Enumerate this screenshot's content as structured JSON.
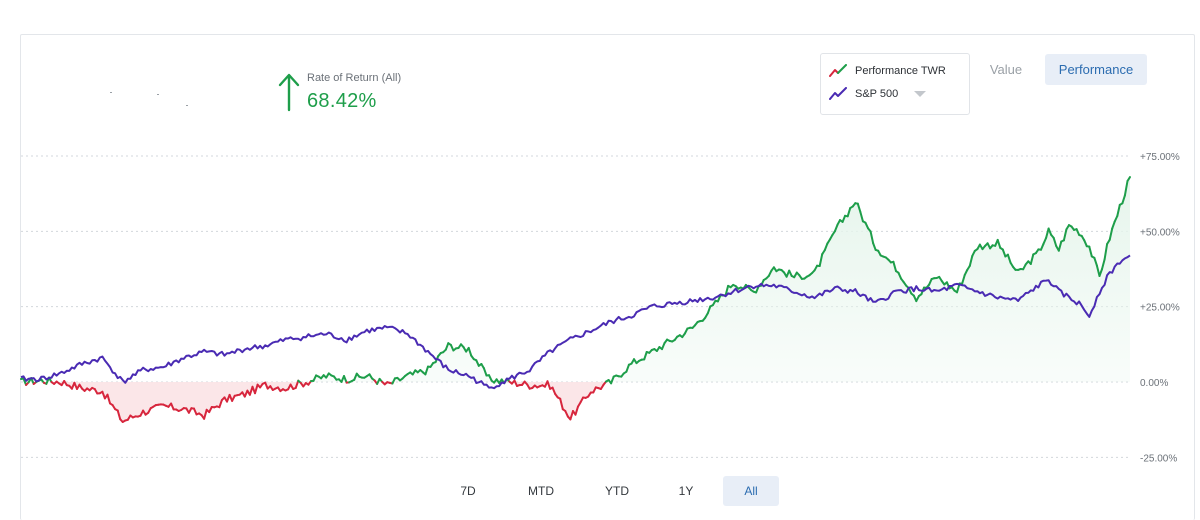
{
  "summary": {
    "label": "Rate of Return (All)",
    "value": "68.42%",
    "arrow_icon": "arrow-up-icon",
    "color": "#1e9e4a"
  },
  "legend": {
    "items": [
      {
        "label": "Performance TWR",
        "icon": "trend-line-icon",
        "colors": [
          "#d7263d",
          "#1e9e4a"
        ]
      },
      {
        "label": "S&P 500",
        "icon": "trend-line-icon",
        "colors": [
          "#4a2bb3"
        ],
        "has_dropdown": true
      }
    ]
  },
  "view_toggle": {
    "value_label": "Value",
    "performance_label": "Performance",
    "active": "Performance"
  },
  "ranges": {
    "items": [
      "7D",
      "MTD",
      "YTD",
      "1Y",
      "All"
    ],
    "active": "All"
  },
  "chart_data": {
    "type": "line",
    "ylim": [
      -25,
      75
    ],
    "y_ticks": [
      75,
      50,
      25,
      0,
      -25
    ],
    "y_tick_labels": [
      "+75.00%",
      "+50.00%",
      "+25.00%",
      "0.00%",
      "-25.00%"
    ],
    "grid": true,
    "area_fill_under_performance": true,
    "colors": {
      "performance_positive": "#1e9e4a",
      "performance_negative": "#d7263d",
      "benchmark": "#4a2bb3",
      "fill_positive": "#e6f5ec",
      "fill_negative": "#fbe3e6"
    },
    "x": [
      0,
      2,
      4,
      6,
      8,
      10,
      12,
      14,
      16,
      18,
      20,
      22,
      24,
      26,
      28,
      30,
      32,
      34,
      36,
      38,
      40,
      42,
      44,
      46,
      48,
      50,
      52,
      54,
      56,
      58,
      60,
      62,
      64,
      66,
      68,
      70,
      72,
      74,
      76,
      78,
      80,
      82,
      84,
      86,
      88,
      90,
      92,
      94,
      96,
      98,
      100
    ],
    "series": [
      {
        "name": "Performance TWR",
        "values": [
          0,
          0.5,
          0,
          -2,
          -3,
          -13,
          -10,
          -8,
          -9,
          -11,
          -6,
          -4,
          -1,
          -2,
          0,
          2,
          1,
          2,
          -1,
          2,
          4,
          12,
          11,
          1,
          0,
          -1,
          -1,
          -12,
          -3,
          0,
          6,
          10,
          14,
          18,
          25,
          33,
          30,
          38,
          35,
          36,
          50,
          60,
          45,
          38,
          28,
          35,
          30,
          45,
          46,
          36,
          43,
          50,
          44,
          52,
          50,
          45,
          35,
          48,
          58,
          68
        ],
        "x": [
          0,
          2,
          4,
          6,
          8,
          10,
          12,
          14,
          16,
          18,
          20,
          22,
          24,
          26,
          28,
          30,
          32,
          34,
          36,
          38,
          40,
          42,
          44,
          46,
          48,
          50,
          52,
          54,
          56,
          58,
          60,
          62,
          64,
          66,
          68,
          70,
          72,
          74,
          76,
          78,
          80,
          82,
          84,
          86,
          88,
          90,
          92,
          94,
          96,
          98,
          100,
          101,
          102,
          103,
          104,
          105,
          106,
          107,
          108,
          109
        ]
      },
      {
        "name": "S&P 500",
        "values": [
          1,
          1,
          3,
          6,
          8,
          0,
          4,
          5,
          8,
          10,
          9,
          11,
          12,
          14,
          15,
          16,
          14,
          17,
          18,
          16,
          10,
          4,
          2,
          -2,
          1,
          4,
          10,
          14,
          17,
          20,
          22,
          25,
          26,
          27,
          28,
          30,
          32,
          32,
          30,
          28,
          31,
          30,
          26,
          30,
          31,
          30,
          32,
          30,
          28,
          27,
          32,
          34,
          30,
          28,
          26,
          22,
          30,
          36,
          40,
          42
        ],
        "x": [
          0,
          2,
          4,
          6,
          8,
          10,
          12,
          14,
          16,
          18,
          20,
          22,
          24,
          26,
          28,
          30,
          32,
          34,
          36,
          38,
          40,
          42,
          44,
          46,
          48,
          50,
          52,
          54,
          56,
          58,
          60,
          62,
          64,
          66,
          68,
          70,
          72,
          74,
          76,
          78,
          80,
          82,
          84,
          86,
          88,
          90,
          92,
          94,
          96,
          98,
          100,
          101,
          102,
          103,
          104,
          105,
          106,
          107,
          108,
          109
        ]
      }
    ]
  }
}
